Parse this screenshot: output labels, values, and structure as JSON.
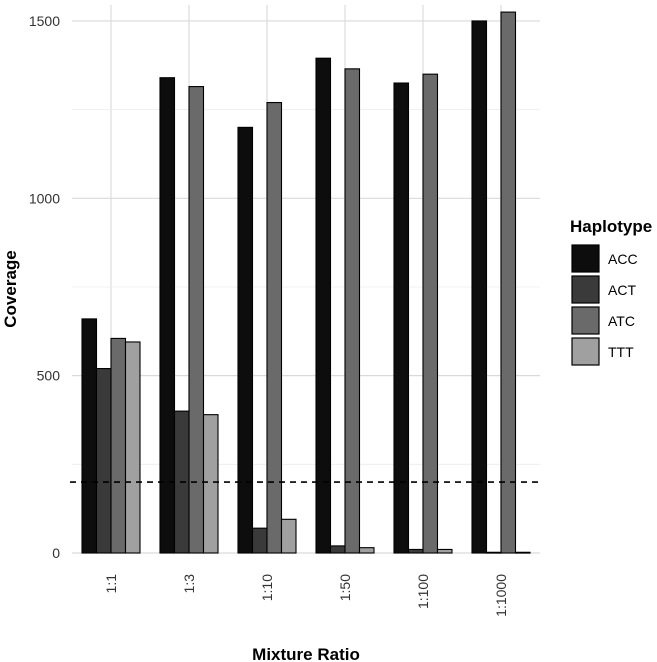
{
  "chart_data": {
    "type": "bar",
    "xlabel": "Mixture Ratio",
    "ylabel": "Coverage",
    "ylim": [
      0,
      1545
    ],
    "yticks": [
      0,
      500,
      1000,
      1500
    ],
    "grid": true,
    "legend_title": "Haplotype",
    "legend_position": "right",
    "threshold_line": 200,
    "categories": [
      "1:1",
      "1:3",
      "1:10",
      "1:50",
      "1:100",
      "1:1000"
    ],
    "series": [
      {
        "name": "ACC",
        "color": "#0d0d0d",
        "values": [
          660,
          1340,
          1200,
          1395,
          1325,
          1500
        ]
      },
      {
        "name": "ACT",
        "color": "#3a3a3a",
        "values": [
          520,
          400,
          70,
          20,
          10,
          2
        ]
      },
      {
        "name": "ATC",
        "color": "#6a6a6a",
        "values": [
          605,
          1315,
          1270,
          1365,
          1350,
          1525
        ]
      },
      {
        "name": "TTT",
        "color": "#a0a0a0",
        "values": [
          595,
          390,
          95,
          15,
          10,
          2
        ]
      }
    ]
  }
}
